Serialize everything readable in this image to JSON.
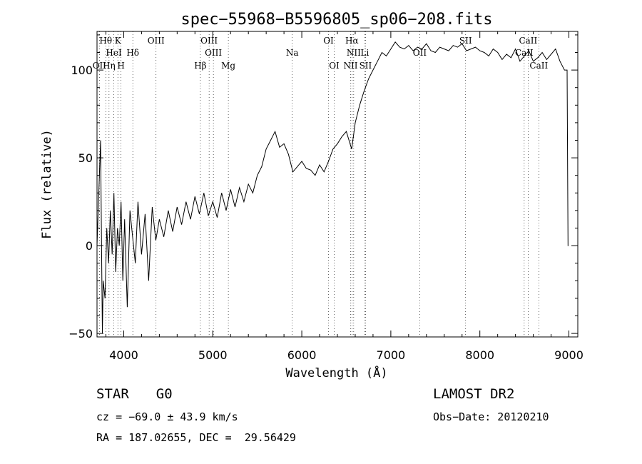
{
  "chart_data": {
    "type": "line",
    "title": "spec−55968−B5596805_sp06−208.fits",
    "xlabel": "Wavelength (Å)",
    "ylabel": "Flux (relative)",
    "xlim": [
      3700,
      9100
    ],
    "ylim": [
      -52,
      122
    ],
    "xticks": [
      4000,
      5000,
      6000,
      7000,
      8000,
      9000
    ],
    "xtick_labels": [
      "4000",
      "5000",
      "6000",
      "7000",
      "8000",
      "9000"
    ],
    "yticks": [
      -50,
      0,
      50,
      100
    ],
    "ytick_labels": [
      "−50",
      "0",
      "50",
      "100"
    ],
    "grid": false,
    "legend": "none",
    "series": [
      {
        "x": [
          3700,
          3740,
          3760,
          3770,
          3790,
          3810,
          3830,
          3850,
          3870,
          3890,
          3910,
          3930,
          3950,
          3970,
          3990,
          4010,
          4040,
          4070,
          4100,
          4130,
          4160,
          4200,
          4240,
          4280,
          4320,
          4360,
          4400,
          4450,
          4500,
          4550,
          4600,
          4650,
          4700,
          4750,
          4800,
          4850,
          4900,
          4950,
          5000,
          5050,
          5100,
          5150,
          5200,
          5250,
          5300,
          5350,
          5400,
          5450,
          5500,
          5550,
          5600,
          5650,
          5700,
          5750,
          5800,
          5850,
          5900,
          5950,
          6000,
          6050,
          6100,
          6150,
          6200,
          6250,
          6300,
          6350,
          6400,
          6450,
          6500,
          6560,
          6600,
          6650,
          6700,
          6750,
          6800,
          6850,
          6900,
          6950,
          7000,
          7050,
          7100,
          7150,
          7200,
          7250,
          7300,
          7350,
          7400,
          7450,
          7500,
          7550,
          7600,
          7650,
          7700,
          7750,
          7800,
          7850,
          7900,
          7950,
          8000,
          8050,
          8100,
          8150,
          8200,
          8250,
          8300,
          8350,
          8400,
          8450,
          8500,
          8550,
          8600,
          8650,
          8700,
          8750,
          8800,
          8850,
          8900,
          8950,
          8980,
          8990,
          8995
        ],
        "y": [
          0,
          60,
          -50,
          -20,
          -30,
          10,
          -10,
          20,
          -5,
          30,
          -15,
          10,
          0,
          25,
          -20,
          15,
          -35,
          20,
          5,
          -10,
          25,
          -5,
          18,
          -20,
          22,
          3,
          15,
          5,
          20,
          8,
          22,
          12,
          25,
          15,
          28,
          18,
          30,
          17,
          25,
          16,
          30,
          20,
          32,
          22,
          33,
          25,
          35,
          30,
          40,
          45,
          55,
          60,
          65,
          56,
          58,
          52,
          42,
          45,
          48,
          44,
          43,
          40,
          46,
          42,
          48,
          55,
          58,
          62,
          65,
          55,
          70,
          80,
          88,
          95,
          100,
          105,
          110,
          108,
          112,
          116,
          113,
          112,
          114,
          111,
          113,
          112,
          115,
          111,
          110,
          113,
          112,
          111,
          114,
          113,
          115,
          111,
          112,
          113,
          111,
          110,
          108,
          112,
          110,
          106,
          109,
          107,
          112,
          105,
          108,
          111,
          105,
          107,
          110,
          106,
          109,
          112,
          105,
          100,
          100,
          0,
          0
        ]
      }
    ],
    "spectral_lines": [
      {
        "label": "Hθ",
        "x": 3798,
        "row": 1
      },
      {
        "label": "K",
        "x": 3934,
        "row": 1
      },
      {
        "label": "OIII",
        "x": 4363,
        "row": 1
      },
      {
        "label": "OIII",
        "x": 4959,
        "row": 1
      },
      {
        "label": "OI",
        "x": 6300,
        "row": 1
      },
      {
        "label": "Hα",
        "x": 6563,
        "row": 1
      },
      {
        "label": "SII",
        "x": 7840,
        "row": 1
      },
      {
        "label": "CaII",
        "x": 8542,
        "row": 1
      },
      {
        "label": "HeI",
        "x": 3889,
        "row": 2
      },
      {
        "label": "Hδ",
        "x": 4102,
        "row": 2
      },
      {
        "label": "OIII",
        "x": 5007,
        "row": 2
      },
      {
        "label": "Na",
        "x": 5893,
        "row": 2
      },
      {
        "label": "NII",
        "x": 6583,
        "row": 2
      },
      {
        "label": "Li",
        "x": 6708,
        "row": 2
      },
      {
        "label": "OII",
        "x": 7325,
        "row": 2
      },
      {
        "label": "CaII",
        "x": 8498,
        "row": 2
      },
      {
        "label": "OII",
        "x": 3727,
        "row": 3
      },
      {
        "label": "Hη",
        "x": 3835,
        "row": 3
      },
      {
        "label": "H",
        "x": 3969,
        "row": 3
      },
      {
        "label": "Hβ",
        "x": 4861,
        "row": 3
      },
      {
        "label": "Mg",
        "x": 5175,
        "row": 3
      },
      {
        "label": "OI",
        "x": 6364,
        "row": 3
      },
      {
        "label": "NII",
        "x": 6548,
        "row": 3
      },
      {
        "label": "SII",
        "x": 6716,
        "row": 3
      },
      {
        "label": "CaII",
        "x": 8662,
        "row": 3
      }
    ]
  },
  "info": {
    "class_label": "STAR",
    "subclass": "G0",
    "survey": "LAMOST DR2",
    "cz": "cz = −69.0 ± 43.9 km/s",
    "obs_date": "Obs−Date: 20120210",
    "coords": "RA = 187.02655, DEC =  29.56429"
  }
}
